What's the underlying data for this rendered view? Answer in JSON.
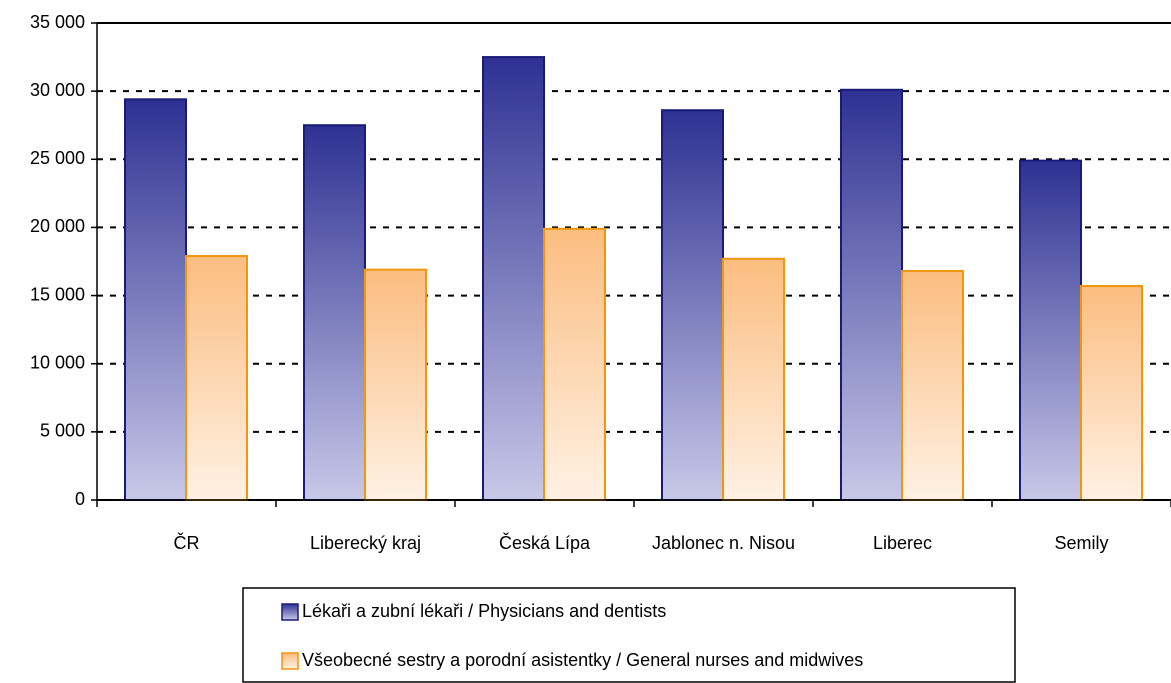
{
  "chart_data": {
    "type": "bar",
    "categories": [
      "ČR",
      "Liberecký kraj",
      "Česká Lípa",
      "Jablonec n. Nisou",
      "Liberec",
      "Semily"
    ],
    "series": [
      {
        "name": "Lékaři a zubní lékaři / Physicians and dentists",
        "color": "#2e3192",
        "values": [
          29400,
          27500,
          32500,
          28600,
          30100,
          24900
        ]
      },
      {
        "name": "Všeobecné sestry a porodní asistentky / General nurses and midwives",
        "color": "#fbbd80",
        "values": [
          17900,
          16900,
          19900,
          17700,
          16800,
          15700
        ]
      }
    ],
    "ylim": [
      0,
      35000
    ],
    "yticks": [
      0,
      {
        "value": 5000,
        "label": "5 000"
      },
      {
        "value": 10000,
        "label": "10 000"
      },
      {
        "value": 15000,
        "label": "15 000"
      },
      {
        "value": 20000,
        "label": "20 000"
      },
      {
        "value": 25000,
        "label": "25 000"
      },
      {
        "value": 30000,
        "label": "30 000"
      },
      {
        "value": 35000,
        "label": "35 000"
      }
    ],
    "grid": true
  }
}
